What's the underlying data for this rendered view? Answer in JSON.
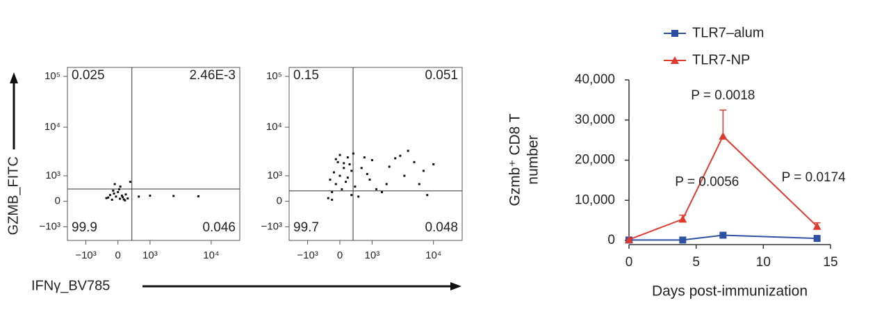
{
  "chart_data": [
    {
      "type": "flow",
      "ylabel": "GZMB_FITC",
      "xlabel": "IFNγ_BV785",
      "color": "#111111",
      "xscale": "biexponential",
      "yscale": "biexponential",
      "xlim": [
        -2100,
        28000
      ],
      "ylim": [
        -2000,
        150000
      ],
      "xticks": [
        {
          "value": -1000,
          "label": "−10³"
        },
        0,
        {
          "value": 1000,
          "label": "10³"
        },
        {
          "value": 10000,
          "label": "10⁴"
        }
      ],
      "yticks": [
        {
          "value": -1000,
          "label": "−10³"
        },
        0,
        {
          "value": 1000,
          "label": "10³"
        },
        {
          "value": 10000,
          "label": "10⁴"
        },
        {
          "value": 100000,
          "label": "10⁵"
        }
      ],
      "gate": {
        "x": 365,
        "y": 410
      },
      "quadrant_labels": [
        "0.025",
        "2.46E-3",
        "99.9",
        "0.046"
      ],
      "x": [
        -300,
        -200,
        -150,
        -100,
        -50,
        0,
        50,
        100,
        150,
        200,
        -250,
        -120,
        30,
        120,
        250,
        -80,
        60,
        180,
        574,
        1000,
        2540,
        6300,
        320
      ],
      "y": [
        100,
        200,
        50,
        250,
        150,
        300,
        80,
        180,
        60,
        220,
        120,
        350,
        400,
        130,
        90,
        600,
        500,
        30,
        150,
        180,
        170,
        160,
        700
      ]
    },
    {
      "type": "flow",
      "color": "#111111",
      "xscale": "biexponential",
      "yscale": "biexponential",
      "xlim": [
        -2100,
        28000
      ],
      "ylim": [
        -2000,
        150000
      ],
      "xticks": [
        {
          "value": -1000,
          "label": "−10³"
        },
        0,
        {
          "value": 1000,
          "label": "10³"
        },
        {
          "value": 10000,
          "label": "10⁴"
        }
      ],
      "yticks": [
        {
          "value": -1000,
          "label": "−10³"
        },
        0,
        {
          "value": 1000,
          "label": "10³"
        },
        {
          "value": 10000,
          "label": "10⁴"
        },
        {
          "value": 100000,
          "label": "10⁵"
        }
      ],
      "gate": {
        "x": 344,
        "y": 340
      },
      "quadrant_labels": [
        "0.15",
        "0.051",
        "99.7",
        "0.048"
      ],
      "x": [
        -300,
        -200,
        -100,
        0,
        100,
        200,
        300,
        -250,
        -150,
        -50,
        50,
        150,
        250,
        350,
        -200,
        0,
        200,
        400,
        600,
        800,
        1000,
        1500,
        2000,
        3000,
        4000,
        5000,
        7000,
        10000,
        500,
        700,
        900,
        1200,
        1800,
        2500,
        3500,
        -100,
        100,
        300,
        6000,
        8000
      ],
      "y": [
        100,
        300,
        600,
        1000,
        1500,
        2500,
        200,
        800,
        1200,
        2000,
        400,
        700,
        1800,
        3000,
        50,
        2800,
        900,
        500,
        1500,
        1100,
        2200,
        300,
        1600,
        2700,
        3400,
        2000,
        1300,
        1800,
        150,
        2500,
        800,
        400,
        600,
        2400,
        1000,
        2300,
        1900,
        1300,
        600,
        200
      ]
    },
    {
      "type": "line",
      "xlabel": "Days post-immunization",
      "ylabel": [
        "Gzmb⁺ CD8 T",
        "number"
      ],
      "x": [
        0,
        4,
        7,
        14
      ],
      "xlim": [
        0,
        15
      ],
      "xticks": [
        0,
        5,
        10,
        15
      ],
      "ylim": [
        0,
        40000
      ],
      "yticks": [
        0,
        {
          "value": 10000,
          "label": "10,000"
        },
        {
          "value": 20000,
          "label": "20,000"
        },
        {
          "value": 30000,
          "label": "30,000"
        },
        {
          "value": 40000,
          "label": "40,000"
        }
      ],
      "series": [
        {
          "name": "TLR7–alum",
          "color": "#2e4fa3",
          "marker": "square",
          "values": [
            100,
            100,
            1300,
            500
          ]
        },
        {
          "name": "TLR7-NP",
          "color": "#e03a2f",
          "marker": "triangle",
          "values": [
            200,
            5300,
            26000,
            3500
          ],
          "errors": [
            null,
            1000,
            6500,
            900
          ]
        }
      ],
      "annotations": [
        null,
        "P = 0.0056",
        "P = 0.0018",
        "P = 0.0174"
      ]
    }
  ]
}
